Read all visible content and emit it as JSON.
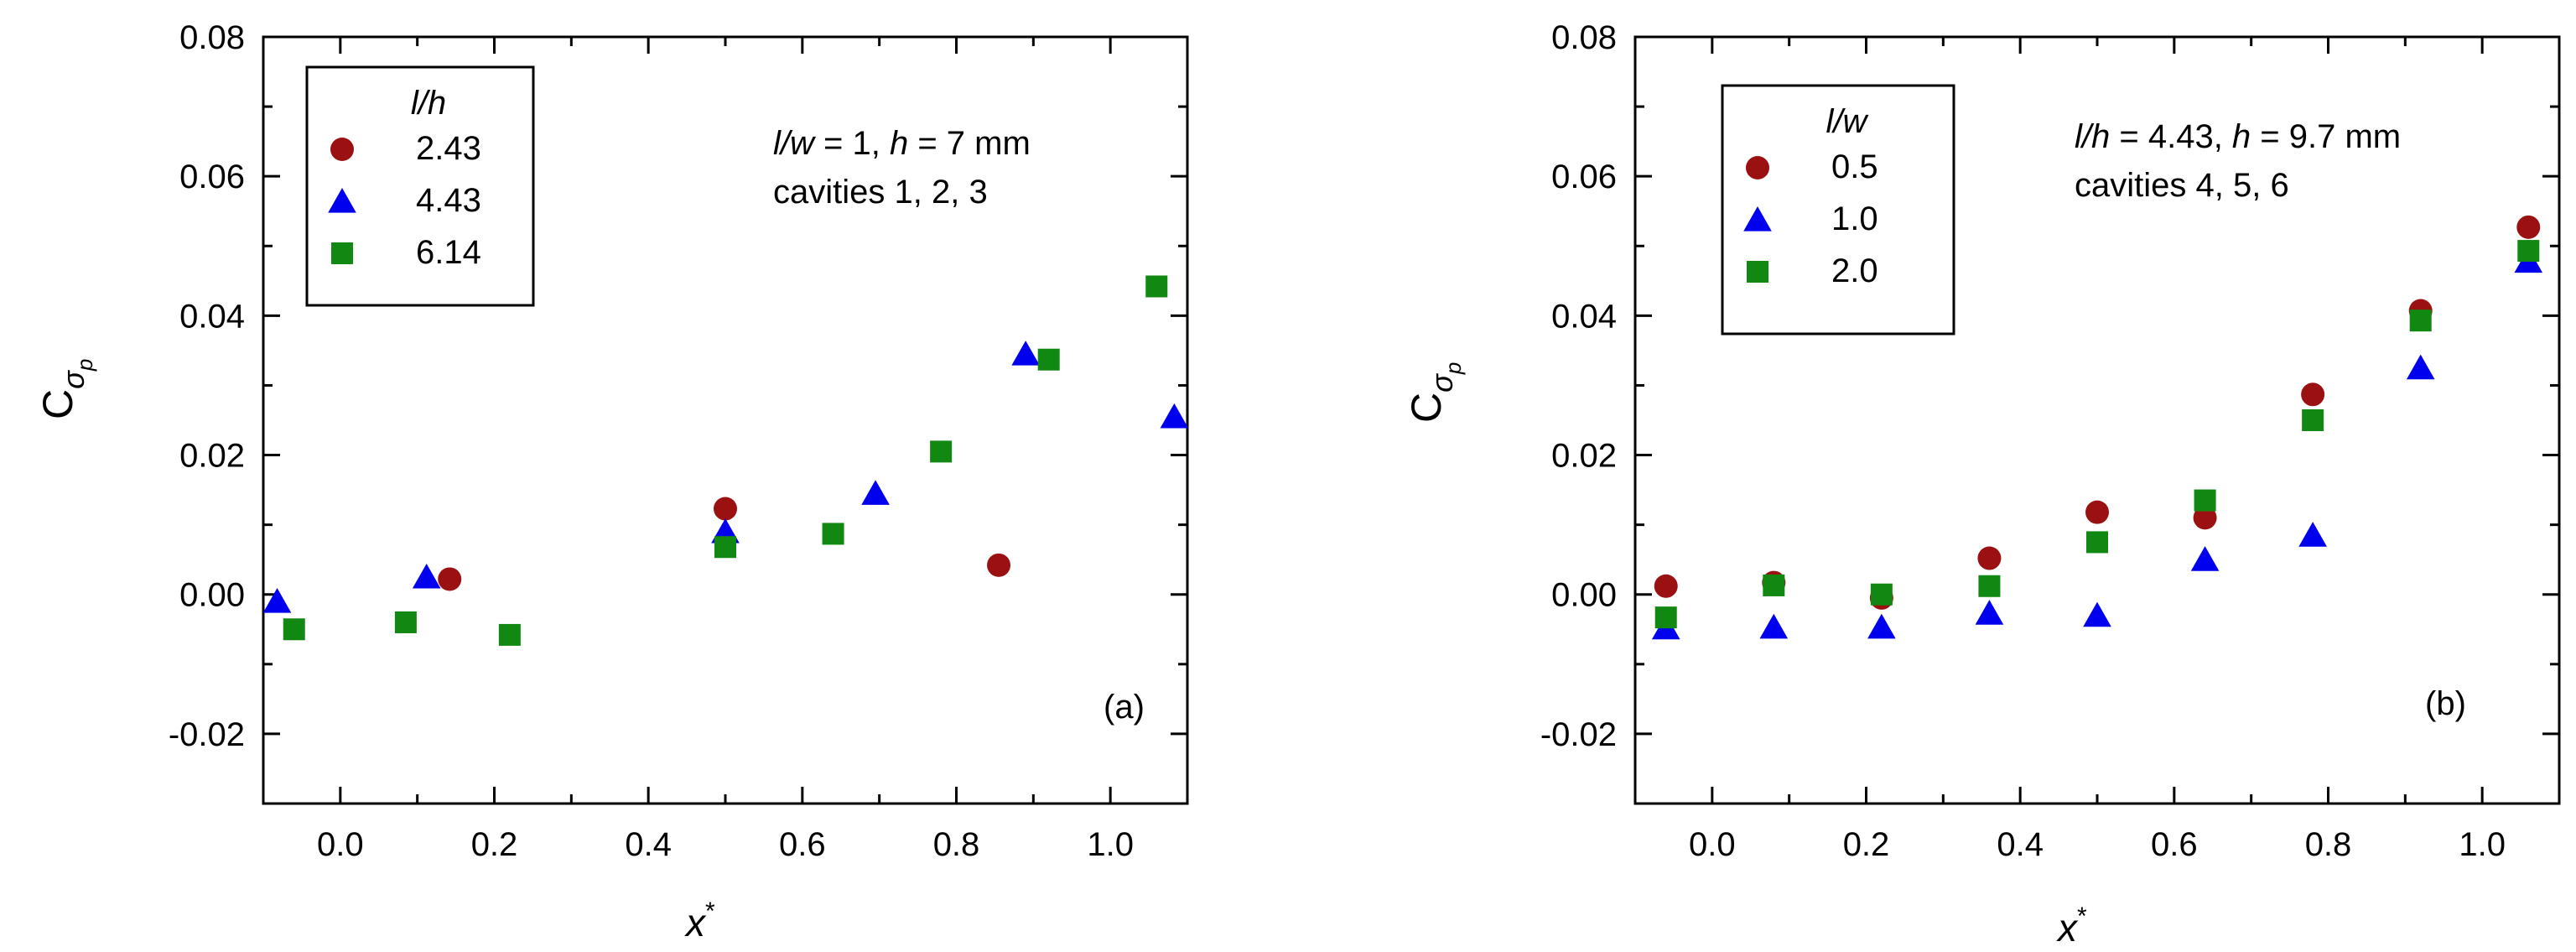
{
  "colors": {
    "circle": "#9b1111",
    "triangle": "#0000ee",
    "square": "#118811"
  },
  "chart_data": [
    {
      "type": "scatter",
      "panel_label": "(a)",
      "xlabel": "x",
      "xlabel_sup": "*",
      "ylabel": "C",
      "ylabel_sub": "σ",
      "ylabel_subsub": "p",
      "xlim": [
        -0.1,
        1.1
      ],
      "ylim": [
        -0.03,
        0.08
      ],
      "xticks": [
        0.0,
        0.2,
        0.4,
        0.6,
        0.8,
        1.0
      ],
      "xtick_labels": [
        "0.0",
        "0.2",
        "0.4",
        "0.6",
        "0.8",
        "1.0"
      ],
      "yticks": [
        -0.02,
        0.0,
        0.02,
        0.04,
        0.06,
        0.08
      ],
      "ytick_labels": [
        "-0.02",
        "0.00",
        "0.02",
        "0.04",
        "0.06",
        "0.08"
      ],
      "grid": false,
      "legend_title": "l/h",
      "legend_position": "top-left",
      "annotation_lines": [
        {
          "parts": [
            {
              "t": "l/w",
              "i": true
            },
            {
              "t": " = 1, ",
              "i": false
            },
            {
              "t": "h",
              "i": true
            },
            {
              "t": " = 7 mm",
              "i": false
            }
          ]
        },
        {
          "parts": [
            {
              "t": "cavities 1, 2, 3",
              "i": false
            }
          ]
        }
      ],
      "series": [
        {
          "name": "2.43",
          "marker": "circle",
          "x": [
            0.142,
            0.5,
            0.855
          ],
          "y": [
            0.0022,
            0.0123,
            0.0042
          ]
        },
        {
          "name": "4.43",
          "marker": "triangle",
          "x": [
            -0.082,
            0.112,
            0.5,
            0.695,
            0.89,
            1.083
          ],
          "y": [
            -0.001,
            0.0025,
            0.009,
            0.0145,
            0.0345,
            0.0255
          ]
        },
        {
          "name": "6.14",
          "marker": "square",
          "x": [
            -0.06,
            0.085,
            0.22,
            0.5,
            0.64,
            0.78,
            0.92,
            1.06
          ],
          "y": [
            -0.005,
            -0.004,
            -0.0058,
            0.0068,
            0.0087,
            0.0205,
            0.0337,
            0.0442
          ]
        }
      ]
    },
    {
      "type": "scatter",
      "panel_label": "(b)",
      "xlabel": "x",
      "xlabel_sup": "*",
      "ylabel": "C",
      "ylabel_sub": "σ",
      "ylabel_subsub": "p",
      "xlim": [
        -0.1,
        1.1
      ],
      "ylim": [
        -0.03,
        0.08
      ],
      "xticks": [
        0.0,
        0.2,
        0.4,
        0.6,
        0.8,
        1.0
      ],
      "xtick_labels": [
        "0.0",
        "0.2",
        "0.4",
        "0.6",
        "0.8",
        "1.0"
      ],
      "yticks": [
        -0.02,
        0.0,
        0.02,
        0.04,
        0.06,
        0.08
      ],
      "ytick_labels": [
        "-0.02",
        "0.00",
        "0.02",
        "0.04",
        "0.06",
        "0.08"
      ],
      "grid": false,
      "legend_title": "l/w",
      "legend_position": "top-left",
      "annotation_lines": [
        {
          "parts": [
            {
              "t": "l/h",
              "i": true
            },
            {
              "t": " = 4.43, ",
              "i": false
            },
            {
              "t": "h",
              "i": true
            },
            {
              "t": " = 9.7 mm",
              "i": false
            }
          ]
        },
        {
          "parts": [
            {
              "t": "cavities 4, 5, 6",
              "i": false
            }
          ]
        }
      ],
      "series": [
        {
          "name": "0.5",
          "marker": "circle",
          "x": [
            -0.06,
            0.08,
            0.22,
            0.36,
            0.5,
            0.64,
            0.78,
            0.92,
            1.06
          ],
          "y": [
            0.0012,
            0.0017,
            -0.0005,
            0.0052,
            0.0118,
            0.011,
            0.0287,
            0.0407,
            0.0527
          ]
        },
        {
          "name": "1.0",
          "marker": "triangle",
          "x": [
            -0.06,
            0.08,
            0.22,
            0.36,
            0.5,
            0.64,
            0.78,
            0.92,
            1.06
          ],
          "y": [
            -0.0048,
            -0.0047,
            -0.0047,
            -0.0027,
            -0.003,
            0.005,
            0.0085,
            0.0325,
            0.0478
          ]
        },
        {
          "name": "2.0",
          "marker": "square",
          "x": [
            -0.06,
            0.08,
            0.22,
            0.36,
            0.5,
            0.64,
            0.78,
            0.92,
            1.06
          ],
          "y": [
            -0.0033,
            0.0013,
            0.0,
            0.0012,
            0.0075,
            0.0135,
            0.025,
            0.0393,
            0.0493
          ]
        }
      ]
    }
  ]
}
